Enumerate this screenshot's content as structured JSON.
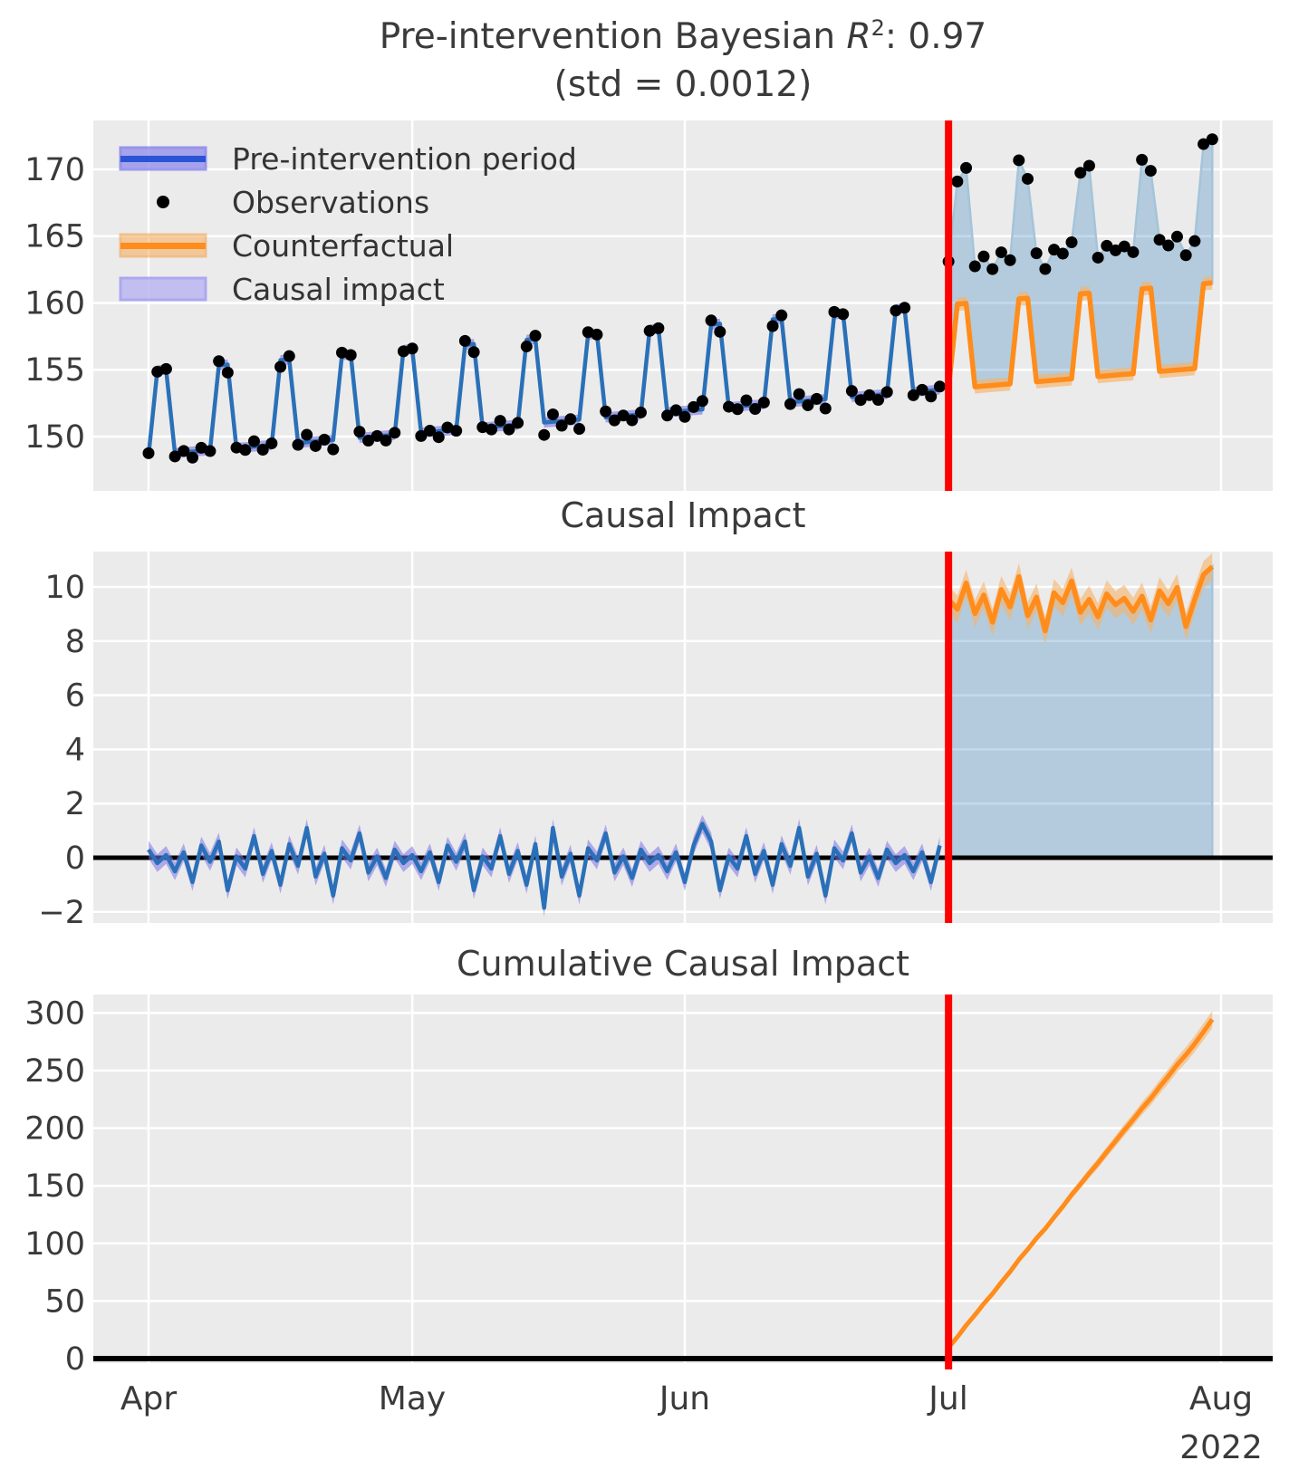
{
  "title": {
    "prefix": "Pre-intervention Bayesian ",
    "r_symbol": "R",
    "r_exponent": "2",
    "suffix": ": 0.97",
    "line2": "(std = 0.0012)"
  },
  "panels": {
    "top": {
      "yticks": [
        170,
        165,
        160,
        155,
        150
      ]
    },
    "middle": {
      "title": "Causal Impact",
      "yticks": [
        10,
        8,
        6,
        4,
        2,
        0,
        -2
      ]
    },
    "bottom": {
      "title": "Cumulative Causal Impact",
      "yticks": [
        300,
        250,
        200,
        150,
        100,
        50,
        0
      ]
    }
  },
  "x_axis": {
    "tick_labels": [
      "Apr",
      "May",
      "Jun",
      "Jul",
      "Aug"
    ],
    "tick_days": [
      0,
      30,
      61,
      91,
      122
    ],
    "year_label": "2022"
  },
  "legend": {
    "items": [
      {
        "label": "Pre-intervention period",
        "swatch": "blue-band-line"
      },
      {
        "label": "Observations",
        "swatch": "black-dot"
      },
      {
        "label": "Counterfactual",
        "swatch": "orange-band-line"
      },
      {
        "label": "Causal impact",
        "swatch": "purple-patch"
      }
    ]
  },
  "colors": {
    "axes_bg": "#ebebeb",
    "grid": "#ffffff",
    "fit_line": "#2a70b8",
    "fit_band": "#7b72e6",
    "legend_line_blue": "#2b54d4",
    "legend_band_blue": "#8f8cee",
    "legend_patch_purple": "#bcb7f1",
    "counterfactual_line": "#ff8c1b",
    "counterfactual_band": "#f7b267",
    "impact_fill_base": "#1f77b4",
    "impact_fill_edge": "#a5c4da",
    "observation_dot": "#000000",
    "intervention_line": "#ff0000",
    "zero_line": "#000000",
    "tick_text": "#3a3a3a"
  },
  "chart_data": {
    "type": "line",
    "x_unit": "day",
    "start_label": "Apr 2022",
    "end_label": "Aug 2022",
    "n_days": 122,
    "intervention_day": 91,
    "panels": [
      {
        "name": "model-fit-and-observations",
        "ylim": [
          145.9,
          173.7
        ],
        "bands": {
          "fit_halfwidth": 0.38,
          "counterfactual_halfwidth": 0.5
        },
        "series": {
          "model_fit_pre": [
            148.6,
            154.95,
            155.01,
            148.76,
            148.82,
            148.87,
            148.93,
            148.98,
            155.34,
            155.39,
            149.15,
            149.2,
            149.25,
            149.31,
            149.36,
            155.72,
            155.77,
            149.53,
            149.58,
            149.64,
            149.69,
            149.74,
            156.1,
            156.15,
            149.91,
            149.96,
            150.02,
            150.07,
            150.13,
            156.48,
            156.54,
            150.29,
            150.34,
            150.4,
            150.45,
            150.51,
            156.86,
            156.92,
            150.67,
            150.73,
            150.78,
            150.83,
            150.89,
            157.24,
            157.3,
            151.05,
            151.11,
            151.16,
            151.22,
            151.27,
            157.63,
            157.68,
            151.43,
            151.49,
            151.54,
            151.6,
            151.65,
            158.01,
            158.06,
            151.82,
            151.87,
            151.92,
            151.98,
            152.03,
            158.39,
            158.44,
            152.2,
            152.25,
            152.31,
            152.36,
            152.42,
            158.77,
            158.82,
            152.58,
            152.63,
            152.69,
            152.74,
            152.8,
            159.15,
            159.21,
            152.96,
            153.01,
            153.07,
            153.12,
            153.18,
            159.53,
            159.59,
            153.34,
            153.4,
            153.45,
            153.51
          ],
          "observations": [
            148.75,
            154.85,
            155.06,
            148.51,
            148.92,
            148.42,
            149.16,
            148.91,
            155.64,
            154.79,
            149.17,
            149.0,
            149.65,
            149.01,
            149.49,
            155.22,
            156.02,
            149.38,
            150.13,
            149.29,
            149.77,
            149.04,
            156.28,
            156.1,
            150.36,
            149.69,
            150.04,
            149.7,
            150.28,
            156.38,
            156.59,
            150.04,
            150.44,
            149.95,
            150.68,
            150.43,
            157.16,
            156.32,
            150.7,
            150.53,
            151.18,
            150.53,
            151.02,
            156.74,
            157.55,
            150.12,
            151.66,
            150.81,
            151.3,
            150.57,
            157.81,
            157.63,
            151.88,
            151.21,
            151.57,
            151.22,
            151.8,
            157.91,
            158.11,
            151.57,
            151.97,
            151.47,
            152.21,
            152.66,
            158.69,
            157.84,
            152.23,
            152.05,
            152.71,
            152.06,
            152.55,
            158.27,
            159.07,
            152.43,
            153.18,
            152.34,
            152.82,
            152.1,
            159.33,
            159.16,
            153.41,
            152.73,
            153.1,
            152.74,
            153.33,
            159.43,
            159.64,
            153.09,
            153.5,
            153.0,
            153.74,
            163.1,
            169.09,
            170.11,
            162.74,
            163.48,
            162.53,
            163.79,
            163.2,
            170.68,
            169.29,
            163.72,
            162.54,
            163.99,
            163.69,
            164.54,
            169.74,
            170.27,
            163.39,
            164.28,
            163.94,
            164.23,
            163.8,
            170.72,
            169.89,
            164.73,
            164.3,
            164.96,
            163.57,
            164.63,
            171.89,
            172.25
          ],
          "counterfactual_post": [
            153.56,
            159.91,
            159.97,
            153.72,
            153.78,
            153.83,
            153.89,
            153.94,
            160.3,
            160.35,
            154.1,
            154.16,
            154.21,
            154.27,
            154.32,
            160.68,
            160.73,
            154.49,
            154.54,
            154.6,
            154.65,
            154.7,
            161.06,
            161.11,
            154.87,
            154.92,
            154.98,
            155.03,
            155.09,
            161.44,
            161.5
          ]
        }
      },
      {
        "name": "causal-impact",
        "ylim": [
          -2.4,
          11.3
        ],
        "bands": {
          "pre_halfwidth": 0.33,
          "post_halfwidth": 0.5
        },
        "series": {
          "impact_pre": [
            0.3,
            -0.2,
            0.1,
            -0.5,
            0.2,
            -0.9,
            0.45,
            -0.15,
            0.6,
            -1.2,
            0.05,
            -0.4,
            0.8,
            -0.6,
            0.25,
            -1.0,
            0.5,
            -0.3,
            1.1,
            -0.7,
            0.15,
            -1.4,
            0.35,
            -0.1,
            0.9,
            -0.55,
            0.05,
            -0.75,
            0.3,
            -0.2,
            0.1,
            -0.5,
            0.2,
            -0.9,
            0.45,
            -0.15,
            0.6,
            -1.2,
            0.05,
            -0.4,
            0.8,
            -0.6,
            0.25,
            -1.0,
            0.5,
            -1.85,
            1.1,
            -0.7,
            0.15,
            -1.4,
            0.35,
            -0.1,
            0.9,
            -0.55,
            0.05,
            -0.75,
            0.3,
            -0.2,
            0.1,
            -0.5,
            0.2,
            -0.9,
            0.45,
            1.25,
            0.6,
            -1.2,
            0.05,
            -0.4,
            0.8,
            -0.6,
            0.25,
            -1.0,
            0.5,
            -0.3,
            1.1,
            -0.7,
            0.15,
            -1.4,
            0.35,
            -0.1,
            0.9,
            -0.55,
            0.05,
            -0.75,
            0.3,
            -0.2,
            0.1,
            -0.5,
            0.2,
            -0.9,
            0.45
          ],
          "impact_post": [
            9.54,
            9.18,
            10.14,
            9.02,
            9.7,
            8.7,
            9.9,
            9.26,
            10.38,
            8.94,
            9.62,
            8.38,
            9.78,
            9.42,
            10.22,
            9.06,
            9.54,
            8.9,
            9.74,
            9.34,
            9.58,
            9.1,
            9.66,
            8.78,
            9.86,
            9.38,
            9.98,
            8.54,
            9.54,
            10.45,
            10.75
          ]
        }
      },
      {
        "name": "cumulative-causal-impact",
        "ylim": [
          -4,
          315
        ],
        "band_end_halfwidth": 7.5,
        "series": {
          "cumulative_post": [
            9.54,
            18.72,
            28.86,
            37.88,
            47.58,
            56.28,
            66.18,
            75.44,
            85.82,
            94.76,
            104.38,
            112.76,
            122.54,
            131.96,
            142.18,
            151.24,
            160.78,
            169.68,
            179.42,
            188.76,
            198.34,
            207.44,
            217.1,
            225.88,
            235.74,
            245.12,
            255.1,
            263.64,
            273.18,
            283.63,
            294.38
          ]
        }
      }
    ]
  }
}
